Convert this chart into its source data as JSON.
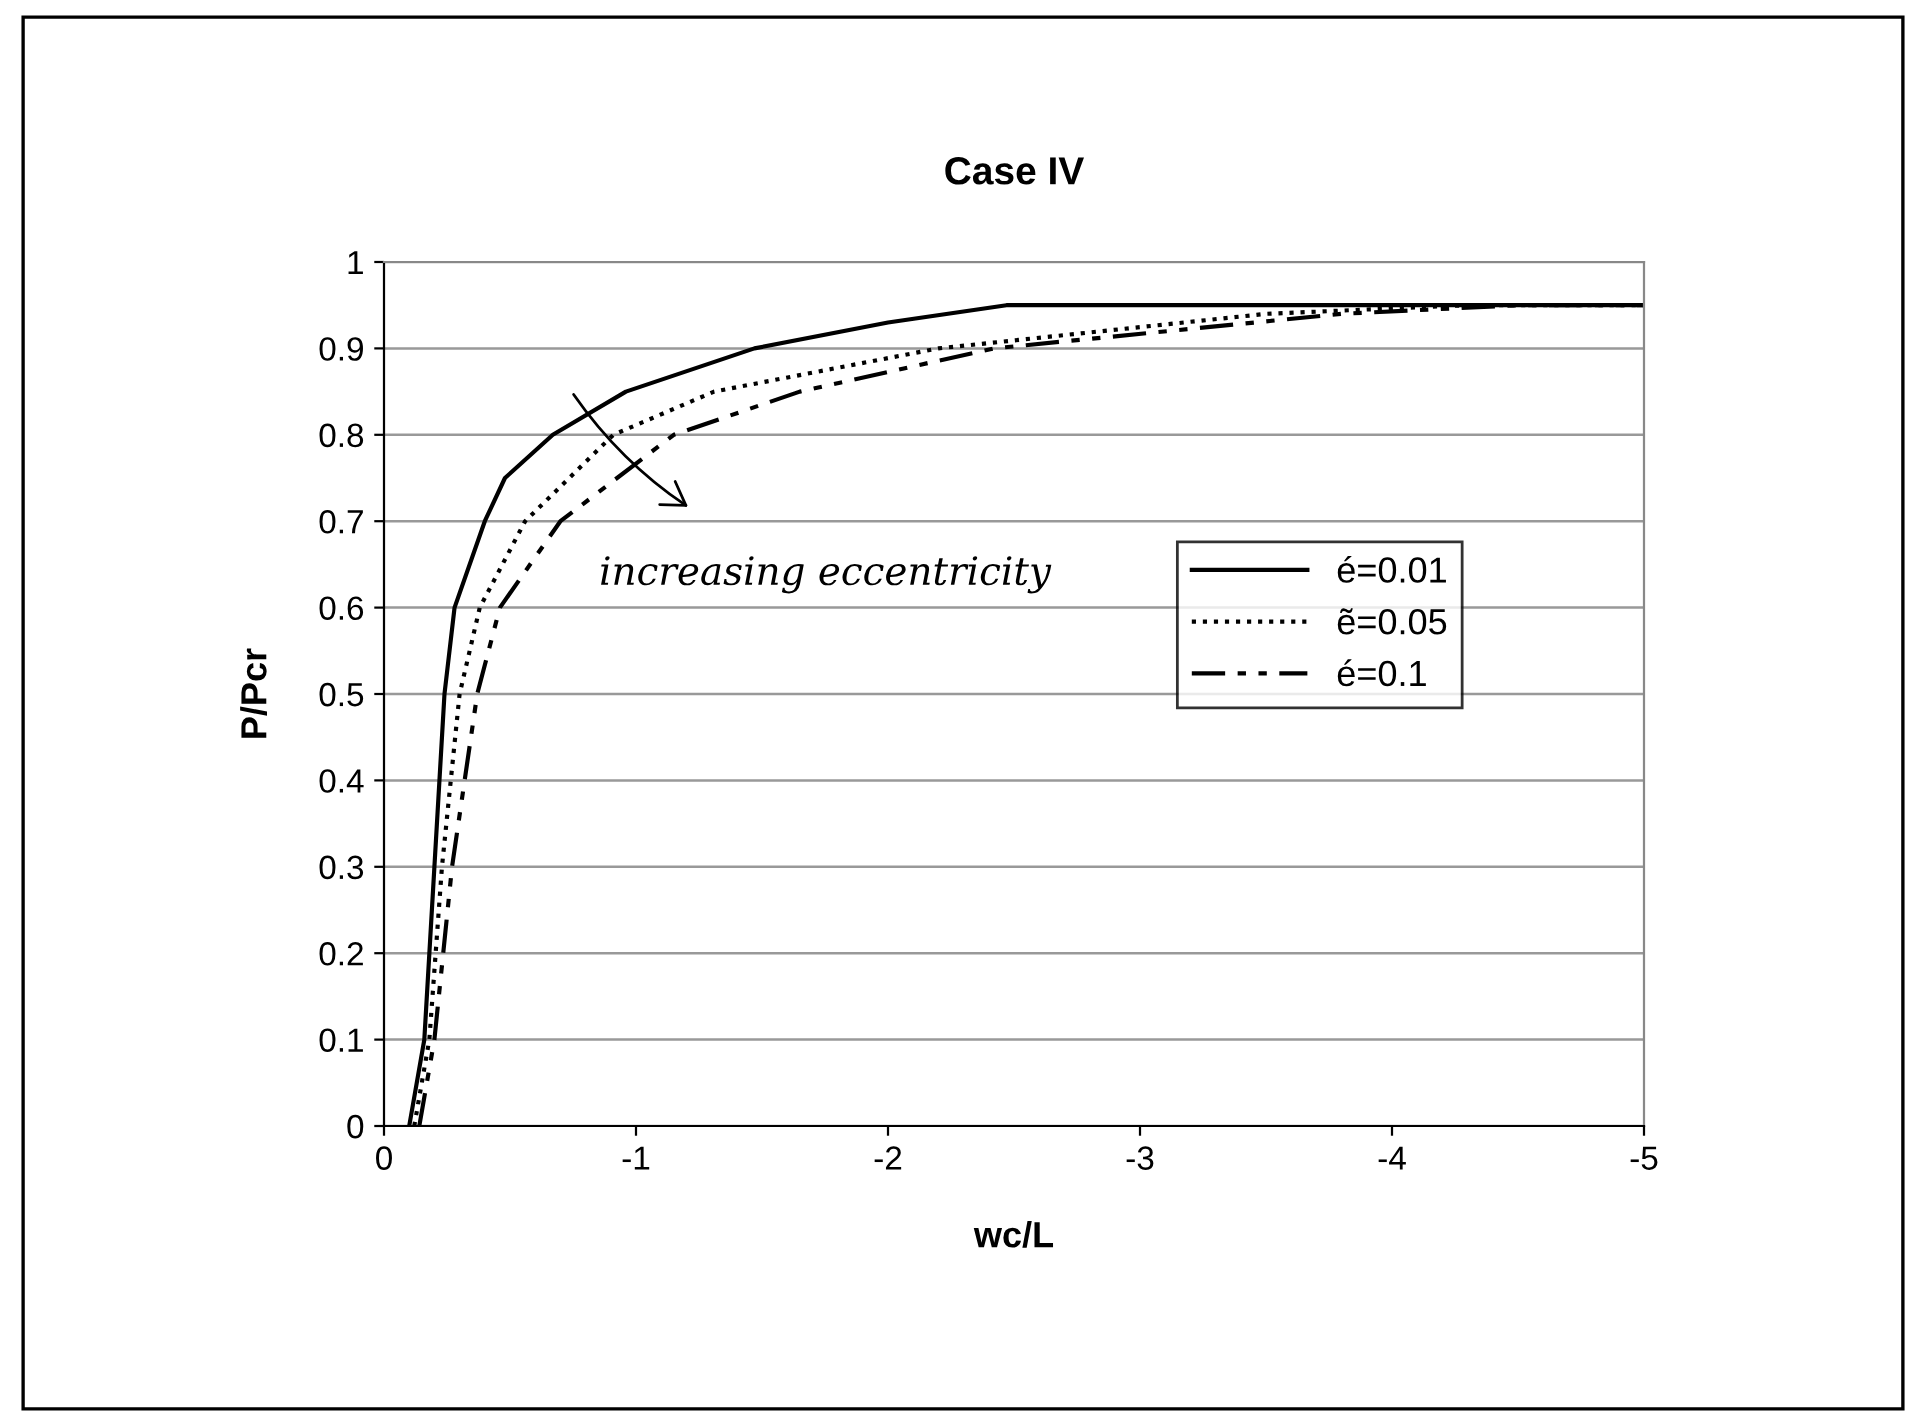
{
  "chart_data": {
    "type": "line",
    "title": "Case IV",
    "xlabel": "wc/L",
    "ylabel": "P/Pcr",
    "xlim": [
      0,
      -5
    ],
    "xticks": [
      0,
      -1,
      -2,
      -3,
      -4,
      -5
    ],
    "ylim": [
      0,
      1
    ],
    "yticks": [
      0,
      0.1,
      0.2,
      0.3,
      0.4,
      0.5,
      0.6,
      0.7,
      0.8,
      0.9,
      1
    ],
    "grid": "y",
    "legend": "right",
    "marker": "none",
    "annotations": [
      "increasing eccentricity"
    ],
    "series": [
      {
        "name": "é=0.01",
        "color": "#000000",
        "line_style": "solid",
        "x": [
          -0.1,
          -0.16,
          -0.2,
          -0.24,
          -0.28,
          -0.4,
          -0.48,
          -0.67,
          -0.96,
          -1.47,
          -2.0,
          -2.47,
          -5
        ],
        "values": [
          0,
          0.1,
          0.3,
          0.5,
          0.6,
          0.7,
          0.75,
          0.8,
          0.85,
          0.9,
          0.93,
          0.95,
          0.95
        ]
      },
      {
        "name": "ẽ=0.05",
        "color": "#000000",
        "line_style": "dotted",
        "x": [
          -0.12,
          -0.18,
          -0.23,
          -0.3,
          -0.38,
          -0.56,
          -0.91,
          -1.31,
          -2.2,
          -3.5,
          -4.3,
          -5
        ],
        "values": [
          0,
          0.1,
          0.3,
          0.5,
          0.6,
          0.7,
          0.8,
          0.85,
          0.9,
          0.94,
          0.95,
          0.95
        ]
      },
      {
        "name": "é=0.1",
        "color": "#000000",
        "line_style": "dashdot",
        "x": [
          -0.14,
          -0.2,
          -0.27,
          -0.37,
          -0.46,
          -0.7,
          -1.15,
          -1.65,
          -2.42,
          -3.8,
          -4.5,
          -5
        ],
        "values": [
          0,
          0.1,
          0.3,
          0.5,
          0.6,
          0.7,
          0.8,
          0.85,
          0.9,
          0.94,
          0.95,
          0.95
        ]
      }
    ]
  }
}
